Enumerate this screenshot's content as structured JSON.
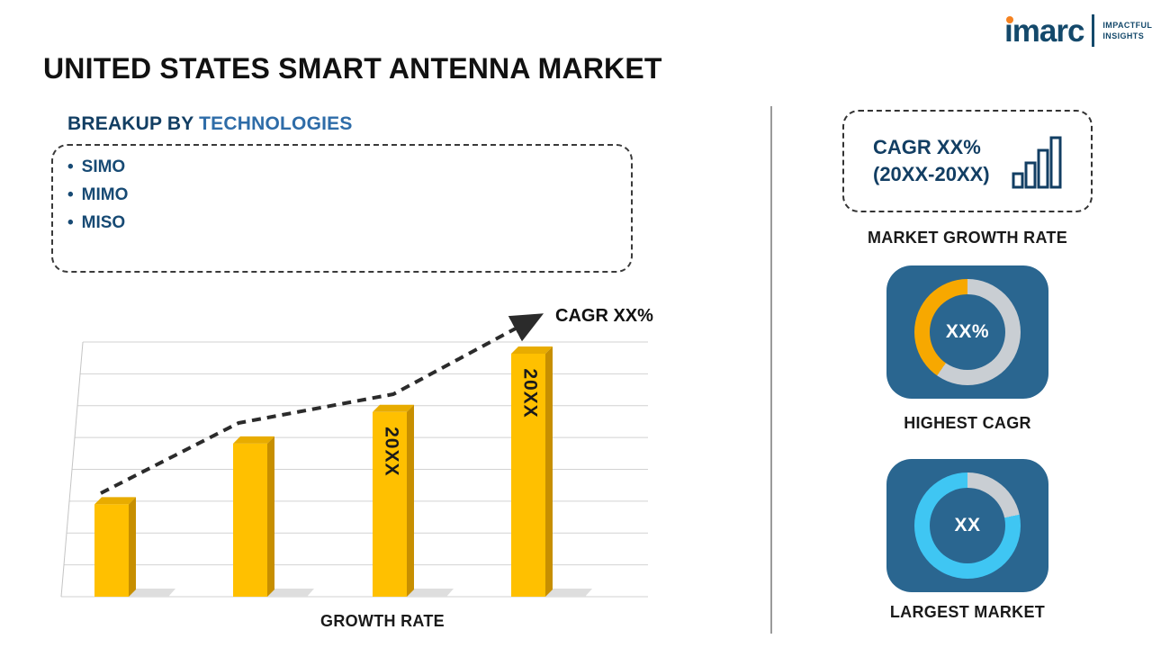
{
  "logo": {
    "brand": "imarc",
    "tagline_line1": "IMPACTFUL",
    "tagline_line2": "INSIGHTS",
    "brand_color": "#14496b",
    "accent_color": "#f58220"
  },
  "title": "UNITED STATES SMART ANTENNA MARKET",
  "breakup": {
    "heading_prefix": "BREAKUP BY",
    "heading_highlight": "TECHNOLOGIES",
    "bullet_char": "•",
    "items": [
      "SIMO",
      "MIMO",
      "MISO"
    ]
  },
  "chart_data": {
    "type": "bar",
    "title": "",
    "categories": [
      "",
      "",
      "20XX",
      "20XX"
    ],
    "values": [
      38,
      63,
      76,
      100
    ],
    "xlabel": "GROWTH RATE",
    "ylabel": "",
    "grid": true,
    "gridline_count": 9,
    "bar_color": "#FFC000",
    "bar_top_color": "#E8AC00",
    "bar_side_color": "#C78F00",
    "trend_label": "CAGR XX%"
  },
  "right_panel": {
    "tile_color": "#2a6690",
    "ring_track_color": "#c9ced3",
    "cagr_box": {
      "line1": "CAGR XX%",
      "line2": "(20XX-20XX)"
    },
    "market_growth_label": "MARKET GROWTH RATE",
    "highest_cagr": {
      "value": "XX%",
      "label": "HIGHEST CAGR",
      "arc_color": "#f7a800",
      "arc_degrees": 145
    },
    "largest_market": {
      "value": "XX",
      "label": "LARGEST MARKET",
      "arc_color": "#3fc6f3",
      "arc_degrees": 282
    }
  }
}
